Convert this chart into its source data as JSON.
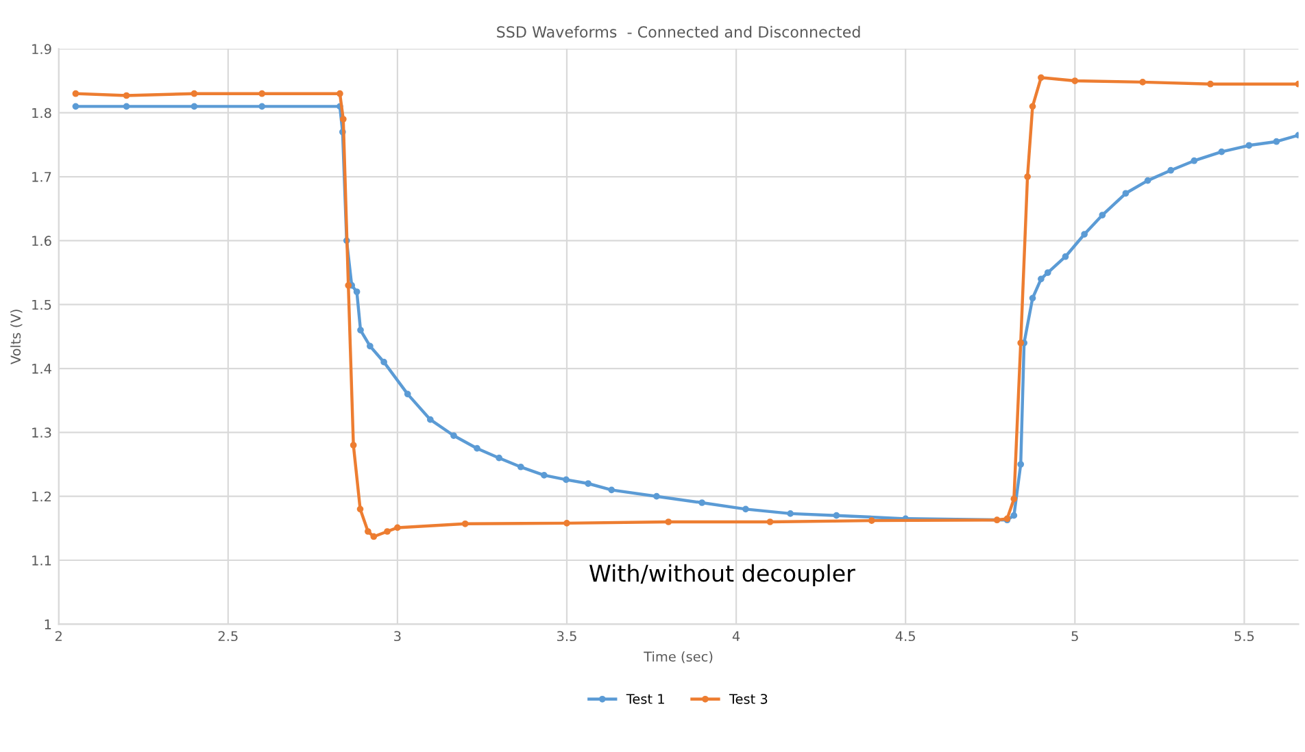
{
  "chart_data": {
    "type": "line",
    "title": "SSD Waveforms  - Connected and Disconnected",
    "xlabel": "Time (sec)",
    "ylabel": "Volts (V)",
    "xlim": [
      2,
      5.66
    ],
    "xticks": [
      2,
      2.5,
      3,
      3.5,
      4,
      4.5,
      5,
      5.5
    ],
    "ylim": [
      1,
      1.9
    ],
    "yticks": [
      1,
      1.1,
      1.2,
      1.3,
      1.4,
      1.5,
      1.6,
      1.7,
      1.8,
      1.9
    ],
    "grid": true,
    "legend": "bottom",
    "marker": "circle",
    "line_style": "solid",
    "annotations": [
      "With/without decoupler"
    ],
    "series": [
      {
        "name": "Test 1",
        "color": "#5b9bd5",
        "x": [
          2.05,
          2.2,
          2.4,
          2.6,
          2.83,
          2.838,
          2.85,
          2.865,
          2.88,
          2.891,
          2.919,
          2.96,
          3.03,
          3.097,
          3.166,
          3.235,
          3.3,
          3.364,
          3.433,
          3.498,
          3.563,
          3.632,
          3.765,
          3.899,
          4.028,
          4.16,
          4.296,
          4.5,
          4.8,
          4.82,
          4.84,
          4.85,
          4.875,
          4.9,
          4.92,
          4.972,
          5.028,
          5.081,
          5.15,
          5.215,
          5.283,
          5.352,
          5.433,
          5.514,
          5.595,
          5.66
        ],
        "values": [
          1.81,
          1.81,
          1.81,
          1.81,
          1.81,
          1.77,
          1.6,
          1.53,
          1.52,
          1.46,
          1.435,
          1.41,
          1.36,
          1.32,
          1.295,
          1.275,
          1.26,
          1.246,
          1.233,
          1.226,
          1.22,
          1.21,
          1.2,
          1.19,
          1.18,
          1.173,
          1.17,
          1.165,
          1.163,
          1.17,
          1.25,
          1.44,
          1.51,
          1.54,
          1.55,
          1.575,
          1.61,
          1.64,
          1.674,
          1.694,
          1.71,
          1.725,
          1.739,
          1.749,
          1.755,
          1.765
        ]
      },
      {
        "name": "Test 3",
        "color": "#ed7d31",
        "x": [
          2.05,
          2.2,
          2.4,
          2.6,
          2.83,
          2.84,
          2.855,
          2.87,
          2.89,
          2.913,
          2.93,
          2.97,
          3.0,
          3.2,
          3.5,
          3.8,
          4.1,
          4.4,
          4.77,
          4.8,
          4.82,
          4.84,
          4.86,
          4.875,
          4.9,
          5.0,
          5.2,
          5.4,
          5.66
        ],
        "values": [
          1.83,
          1.827,
          1.83,
          1.83,
          1.83,
          1.79,
          1.53,
          1.28,
          1.18,
          1.145,
          1.137,
          1.145,
          1.151,
          1.157,
          1.158,
          1.16,
          1.16,
          1.162,
          1.163,
          1.165,
          1.196,
          1.44,
          1.7,
          1.81,
          1.855,
          1.85,
          1.848,
          1.845,
          1.845
        ]
      }
    ]
  }
}
